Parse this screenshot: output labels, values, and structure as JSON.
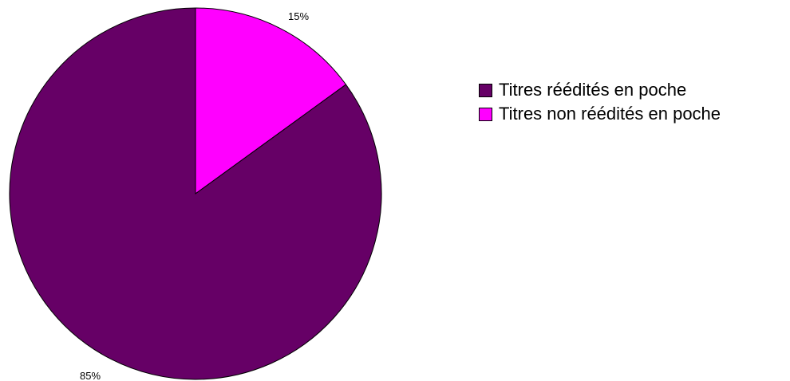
{
  "chart_data": {
    "type": "pie",
    "slices": [
      {
        "label": "Titres rééditéss en poche",
        "value": 85,
        "label_text": "85%",
        "color": "#660066"
      },
      {
        "label": "Titres non rééditéss en poche",
        "value": 15,
        "label_text": "15%",
        "color": "#ff00ff"
      }
    ],
    "legend": {
      "placement": "right",
      "items": [
        "Titres réédités en poche",
        "Titres non réédités en poche"
      ]
    }
  }
}
